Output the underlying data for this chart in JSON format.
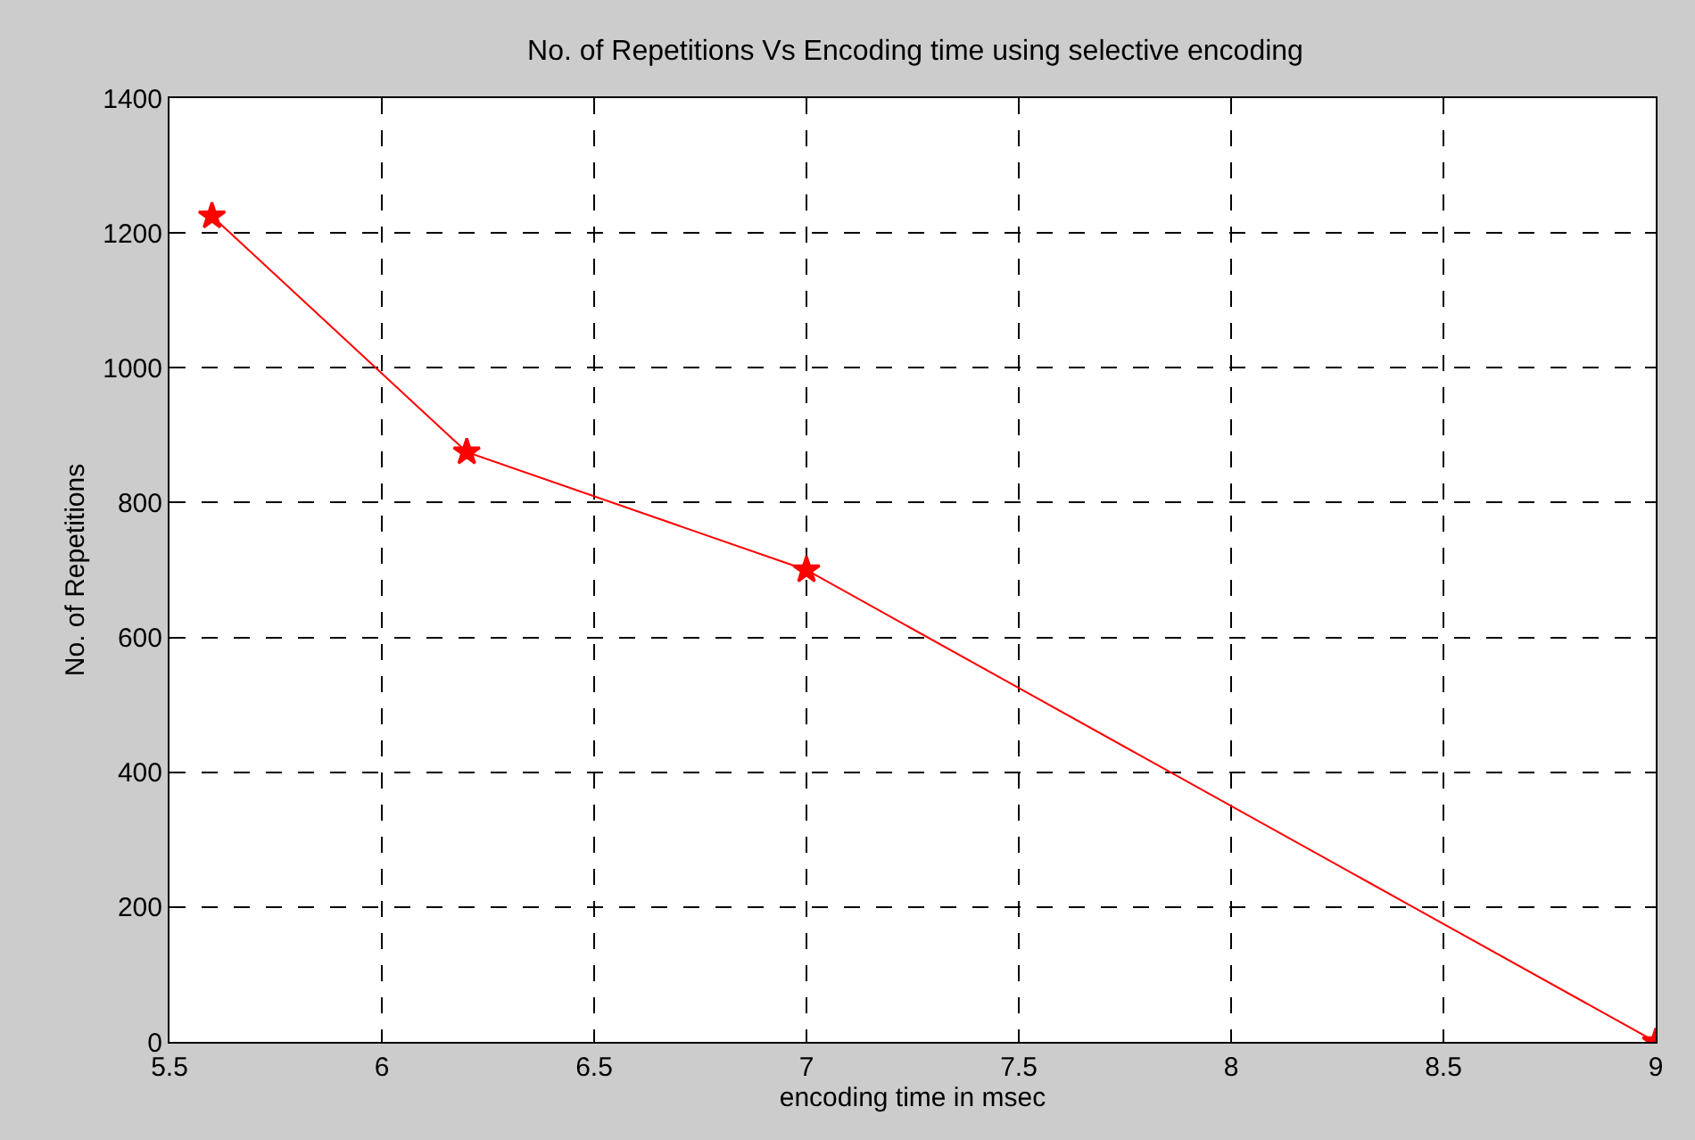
{
  "chart_data": {
    "type": "line",
    "title": "No. of Repetitions Vs Encoding time using selective encoding",
    "xlabel": "encoding time in msec",
    "ylabel": "No. of Repetitions",
    "x": [
      5.6,
      6.2,
      7,
      9
    ],
    "series": [
      {
        "color": "#ff0000",
        "values": [
          1225,
          875,
          700,
          0
        ]
      }
    ],
    "xlim": [
      5.5,
      9
    ],
    "xticks": [
      5.5,
      6,
      6.5,
      7,
      7.5,
      8,
      8.5,
      9
    ],
    "ylim": [
      0,
      1400
    ],
    "yticks": [
      0,
      200,
      400,
      600,
      800,
      1000,
      1200,
      1400
    ],
    "grid": true,
    "marker": "star",
    "line_style": "solid"
  }
}
